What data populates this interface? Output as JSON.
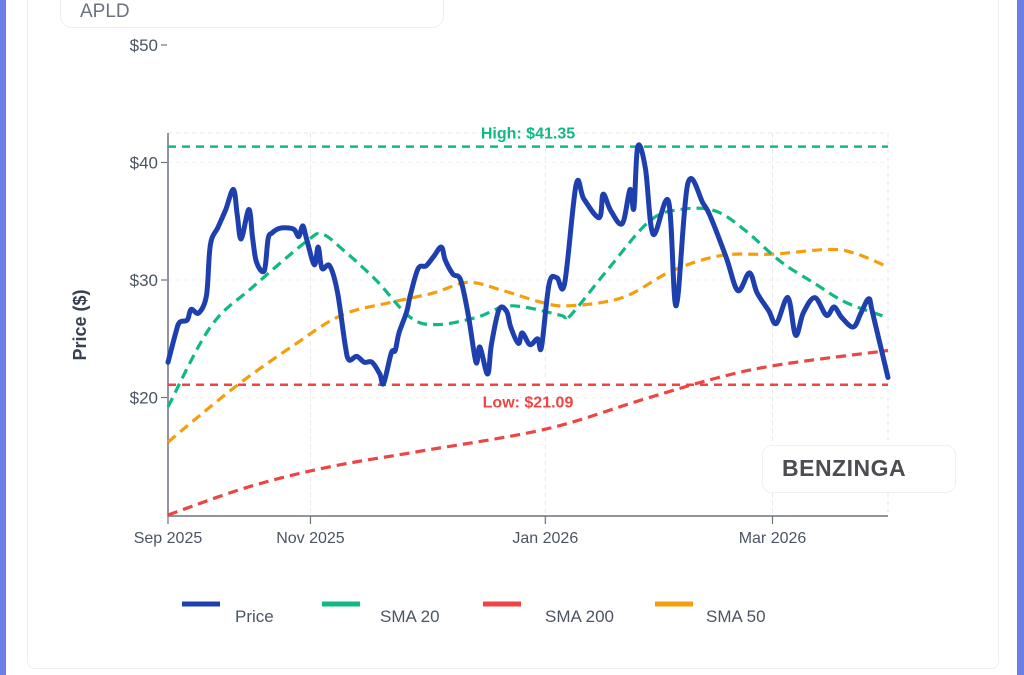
{
  "ticker": "APLD",
  "logo": "BENZINGA",
  "chart_data": {
    "type": "line",
    "ylabel": "Price ($)",
    "y_ticks": [
      {
        "value": 20,
        "label": "$20"
      },
      {
        "value": 30,
        "label": "$30"
      },
      {
        "value": 40,
        "label": "$40"
      },
      {
        "value": 50,
        "label": "$50"
      }
    ],
    "x_ticks": [
      "Sep 2025",
      "Nov 2025",
      "Jan 2026",
      "Mar 2026"
    ],
    "grid": true,
    "legend_position": "bottom",
    "annotations": {
      "high": {
        "label": "High: $41.35",
        "value": 41.35,
        "color": "#10b981"
      },
      "low": {
        "label": "Low: $21.09",
        "value": 21.09,
        "color": "#ef4444"
      }
    },
    "series": [
      {
        "name": "Price",
        "color": "#1e40af",
        "style": "solid",
        "x": [
          "2025-09-25",
          "2025-09-27",
          "2025-09-28",
          "2025-09-30",
          "2025-10-01",
          "2025-10-03",
          "2025-10-05",
          "2025-10-06",
          "2025-10-08",
          "2025-10-10",
          "2025-10-12",
          "2025-10-13",
          "2025-10-14",
          "2025-10-16",
          "2025-10-17",
          "2025-10-18",
          "2025-10-20",
          "2025-10-21",
          "2025-10-22",
          "2025-10-24",
          "2025-10-27",
          "2025-10-28",
          "2025-10-29",
          "2025-10-30",
          "2025-10-31",
          "2025-11-02",
          "2025-11-03",
          "2025-11-04",
          "2025-11-06",
          "2025-11-08",
          "2025-11-10",
          "2025-11-11",
          "2025-11-13",
          "2025-11-15",
          "2025-11-17",
          "2025-11-19",
          "2025-11-20",
          "2025-11-22",
          "2025-11-23",
          "2025-11-24",
          "2025-11-26",
          "2025-11-27",
          "2025-11-29",
          "2025-12-01",
          "2025-12-03",
          "2025-12-05",
          "2025-12-06",
          "2025-12-08",
          "2025-12-10",
          "2025-12-12",
          "2025-12-14",
          "2025-12-15",
          "2025-12-17",
          "2025-12-18",
          "2025-12-20",
          "2025-12-22",
          "2025-12-23",
          "2025-12-25",
          "2025-12-26",
          "2025-12-28",
          "2025-12-30",
          "2025-12-31",
          "2026-01-02",
          "2026-01-04",
          "2026-01-06",
          "2026-01-09",
          "2026-01-11",
          "2026-01-15",
          "2026-01-16",
          "2026-01-18",
          "2026-01-21",
          "2026-01-23",
          "2026-01-24",
          "2026-01-25",
          "2026-01-27",
          "2026-01-29",
          "2026-02-02",
          "2026-02-04",
          "2026-02-07",
          "2026-02-11",
          "2026-02-13",
          "2026-02-17",
          "2026-02-20",
          "2026-02-23",
          "2026-02-25",
          "2026-02-28",
          "2026-03-02",
          "2026-03-05",
          "2026-03-07",
          "2026-03-09",
          "2026-03-12",
          "2026-03-15",
          "2026-03-17",
          "2026-03-19",
          "2026-03-22",
          "2026-03-24",
          "2026-03-26",
          "2026-03-27",
          "2026-03-31"
        ],
        "y": [
          23.0,
          25.5,
          26.4,
          26.6,
          27.5,
          27.2,
          28.7,
          33.0,
          34.5,
          36.0,
          37.7,
          35.5,
          33.5,
          36.0,
          33.5,
          31.5,
          30.8,
          33.5,
          34.0,
          34.4,
          34.4,
          34.2,
          33.7,
          34.6,
          33.5,
          31.3,
          32.8,
          31.0,
          31.2,
          29.0,
          24.5,
          23.2,
          23.5,
          23.0,
          23.0,
          22.0,
          21.2,
          23.8,
          24.0,
          25.5,
          27.3,
          28.8,
          31.0,
          31.2,
          32.0,
          32.8,
          31.7,
          30.5,
          30.0,
          27.0,
          23.0,
          24.3,
          22.0,
          24.5,
          27.5,
          27.3,
          26.0,
          24.6,
          25.5,
          24.5,
          25.0,
          24.3,
          29.7,
          30.2,
          29.7,
          38.1,
          36.9,
          35.3,
          37.3,
          35.9,
          34.8,
          37.7,
          36.1,
          41.35,
          39.5,
          33.9,
          36.7,
          27.8,
          38.2,
          36.5,
          35.3,
          31.9,
          29.1,
          30.6,
          28.9,
          27.4,
          26.3,
          28.5,
          25.3,
          27.2,
          28.5,
          27.0,
          27.7,
          26.8,
          26.0,
          27.2,
          28.4,
          27.2,
          21.7
        ]
      },
      {
        "name": "SMA 20",
        "color": "#10b981",
        "style": "dashed",
        "x": [
          "2025-09-25",
          "2025-10-06",
          "2025-10-17",
          "2025-10-31",
          "2025-11-04",
          "2025-11-09",
          "2025-11-18",
          "2025-11-27",
          "2025-12-04",
          "2025-12-14",
          "2025-12-23",
          "2026-01-05",
          "2026-01-07",
          "2026-01-17",
          "2026-01-28",
          "2026-02-05",
          "2026-02-14",
          "2026-02-22",
          "2026-03-03",
          "2026-03-12",
          "2026-03-20",
          "2026-03-31"
        ],
        "y": [
          19.2,
          26.0,
          29.4,
          33.3,
          33.9,
          32.7,
          30.0,
          26.8,
          26.2,
          26.8,
          27.8,
          27.0,
          26.8,
          30.8,
          35.0,
          36.0,
          35.9,
          34.2,
          31.6,
          29.7,
          28.1,
          26.8
        ]
      },
      {
        "name": "SMA 200",
        "color": "#ef4444",
        "style": "dashed",
        "x": [
          "2025-09-25",
          "2025-10-16",
          "2025-11-06",
          "2025-11-29",
          "2026-01-01",
          "2026-01-26",
          "2026-02-15",
          "2026-03-03",
          "2026-03-31"
        ],
        "y": [
          10.0,
          12.4,
          14.1,
          15.4,
          17.3,
          19.8,
          21.7,
          22.8,
          24.0
        ]
      },
      {
        "name": "SMA 50",
        "color": "#f59e0b",
        "style": "dashed",
        "x": [
          "2025-09-25",
          "2025-10-03",
          "2025-10-14",
          "2025-10-27",
          "2025-11-09",
          "2025-11-22",
          "2025-12-03",
          "2025-12-12",
          "2025-12-21",
          "2025-12-31",
          "2026-01-07",
          "2026-01-21",
          "2026-02-03",
          "2026-02-16",
          "2026-03-01",
          "2026-03-16",
          "2026-03-23",
          "2026-03-31"
        ],
        "y": [
          16.2,
          18.4,
          21.3,
          24.3,
          27.0,
          28.1,
          28.9,
          29.8,
          29.1,
          28.1,
          27.8,
          28.5,
          30.8,
          32.1,
          32.2,
          32.6,
          32.2,
          31.1
        ]
      }
    ]
  }
}
